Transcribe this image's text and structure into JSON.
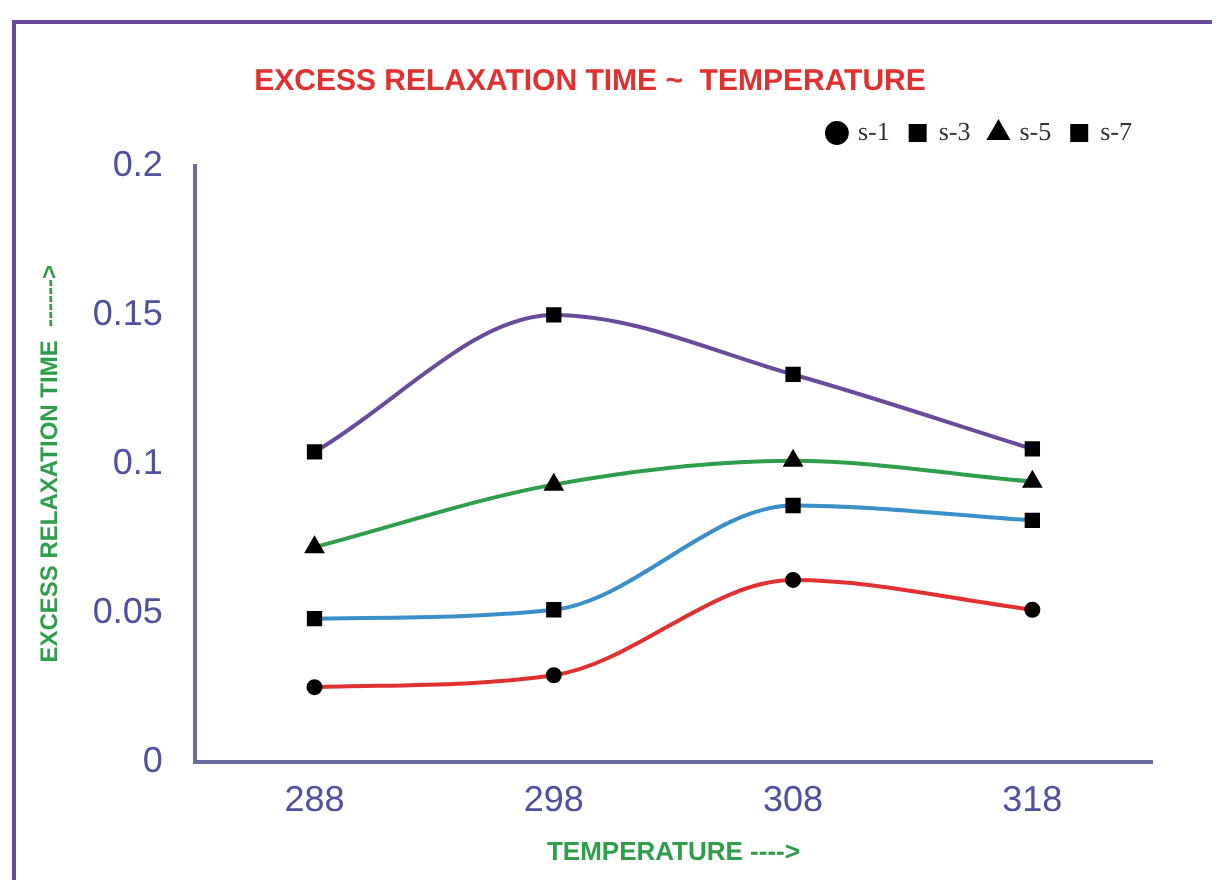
{
  "chart_data": {
    "type": "line",
    "title": "EXCESS RELAXATION TIME ~  TEMPERATURE",
    "xlabel": "TEMPERATURE ---->",
    "ylabel": "EXCESS RELAXATION TIME  ------>",
    "categories": [
      "288",
      "298",
      "308",
      "318"
    ],
    "series": [
      {
        "name": "s-1",
        "color": "#e03030",
        "marker": "circle",
        "values": [
          0.025,
          0.029,
          0.061,
          0.051
        ]
      },
      {
        "name": "s-3",
        "color": "#3a8fc8",
        "marker": "square",
        "values": [
          0.048,
          0.051,
          0.086,
          0.081
        ]
      },
      {
        "name": "s-5",
        "color": "#2e9e4a",
        "marker": "triangle",
        "values": [
          0.072,
          0.093,
          0.101,
          0.094
        ]
      },
      {
        "name": "s-7",
        "color": "#6a4a9a",
        "marker": "square",
        "values": [
          0.104,
          0.15,
          0.13,
          0.105
        ]
      }
    ],
    "ylim": [
      0,
      0.2
    ],
    "yticks": [
      0,
      0.05,
      0.1,
      0.15,
      0.2
    ],
    "grid": false,
    "legend": "top right"
  }
}
